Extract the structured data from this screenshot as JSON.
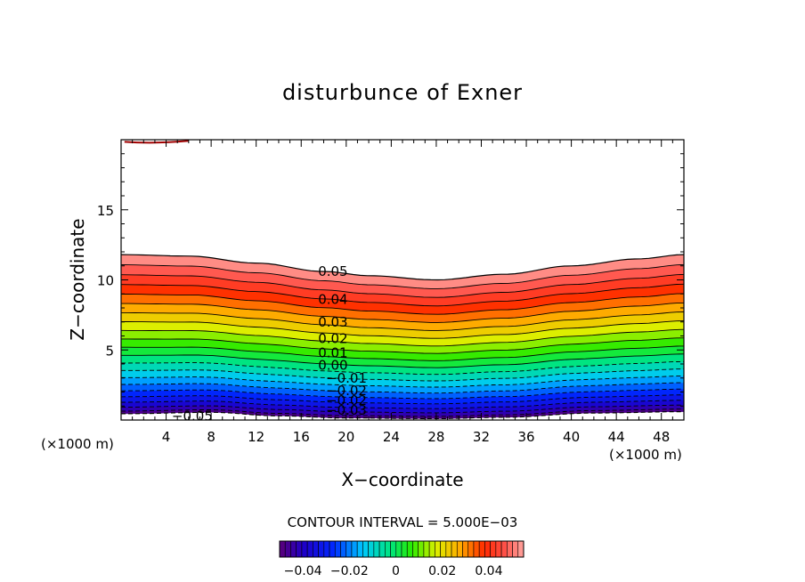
{
  "chart_data": {
    "type": "contour",
    "title": "disturbunce of Exner",
    "xlabel": "X−coordinate",
    "ylabel": "Z−coordinate",
    "x_unit_left": "(×1000 m)",
    "x_unit_right": "(×1000 m)",
    "xlim": [
      0,
      50
    ],
    "ylim": [
      0,
      20
    ],
    "x_ticks": [
      "4",
      "8",
      "12",
      "16",
      "20",
      "24",
      "28",
      "32",
      "36",
      "40",
      "44",
      "48"
    ],
    "y_ticks": [
      "5",
      "10",
      "15"
    ],
    "contour_interval_label": "CONTOUR INTERVAL = 5.000E−03",
    "contour_interval": 0.005,
    "negative_contours_dashed": true,
    "contour_labels": [
      {
        "text": "0.05",
        "x": 17.5,
        "z": 10.6
      },
      {
        "text": "0.04",
        "x": 17.5,
        "z": 8.6
      },
      {
        "text": "0.03",
        "x": 17.5,
        "z": 7.0
      },
      {
        "text": "0.02",
        "x": 17.5,
        "z": 5.8
      },
      {
        "text": "0.01",
        "x": 17.5,
        "z": 4.8
      },
      {
        "text": "0.00",
        "x": 17.5,
        "z": 3.9
      },
      {
        "text": "−0.01",
        "x": 18.2,
        "z": 3.0
      },
      {
        "text": "−0.02",
        "x": 18.2,
        "z": 2.1
      },
      {
        "text": "−0.02",
        "x": 18.2,
        "z": 1.4
      },
      {
        "text": "−0.03",
        "x": 18.2,
        "z": 0.7
      },
      {
        "text": "−0.05",
        "x": 4.5,
        "z": 0.3
      }
    ],
    "top_boundary_z": [
      [
        0,
        11.8
      ],
      [
        6,
        11.7
      ],
      [
        12,
        11.2
      ],
      [
        18,
        10.6
      ],
      [
        22,
        10.3
      ],
      [
        28,
        10.0
      ],
      [
        34,
        10.4
      ],
      [
        40,
        11.0
      ],
      [
        46,
        11.5
      ],
      [
        50,
        11.8
      ]
    ],
    "bottom_boundary_z": [
      [
        0,
        0.45
      ],
      [
        8,
        0.55
      ],
      [
        14,
        0.3
      ],
      [
        20,
        0.15
      ],
      [
        28,
        0.1
      ],
      [
        34,
        0.2
      ],
      [
        42,
        0.5
      ],
      [
        50,
        0.6
      ]
    ],
    "colorbar": {
      "ticks": [
        "−0.04",
        "−0.02",
        "0",
        "0.02",
        "0.04"
      ],
      "tick_values": [
        -0.04,
        -0.02,
        0,
        0.02,
        0.04
      ],
      "range": [
        -0.05,
        0.055
      ]
    }
  }
}
